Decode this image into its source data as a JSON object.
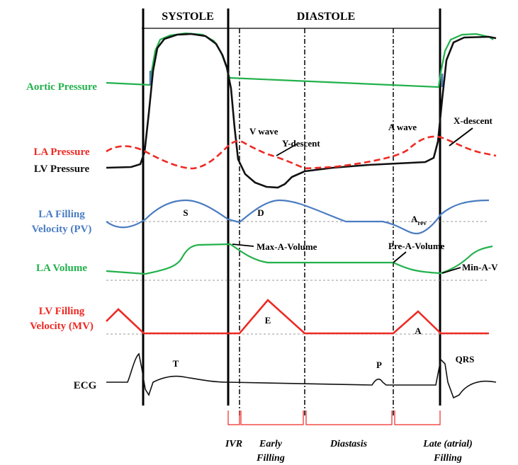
{
  "header": {
    "systole": "SYSTOLE",
    "diastole": "DIASTOLE"
  },
  "rows": {
    "aortic_pressure": "Aortic Pressure",
    "la_pressure": "LA Pressure",
    "lv_pressure": "LV Pressure",
    "la_filling_line1": "LA Filling",
    "la_filling_line2": "Velocity (PV)",
    "la_volume": "LA Volume",
    "lv_filling_line1": "LV Filling",
    "lv_filling_line2": "Velocity (MV)",
    "ecg": "ECG"
  },
  "annotations": {
    "v_wave": "V wave",
    "y_descent": "Y-descent",
    "a_wave": "A wave",
    "x_descent": "X-descent",
    "s": "S",
    "d": "D",
    "a_rev_main": "A",
    "a_rev_sub": "rev",
    "max_a_volume": "Max-A-Volume",
    "pre_a_volume": "Pre-A-Volume",
    "min_a_volume": "Min-A-V",
    "e": "E",
    "a": "A",
    "t": "T",
    "p": "P",
    "qrs": "QRS"
  },
  "phases": {
    "ivr": "IVR",
    "early_filling_1": "Early",
    "early_filling_2": "Filling",
    "diastasis": "Diastasis",
    "late_filling_1": "Late (atrial)",
    "late_filling_2": "Filling"
  },
  "colors": {
    "aortic": "#22b14c",
    "la_pressure": "#ee2a24",
    "lv_pressure": "#111111",
    "pv": "#4a7cc1",
    "la_volume": "#22b14c",
    "mv": "#ee2a24",
    "ecg": "#111111",
    "phase_bracket": "#ee2a24"
  }
}
